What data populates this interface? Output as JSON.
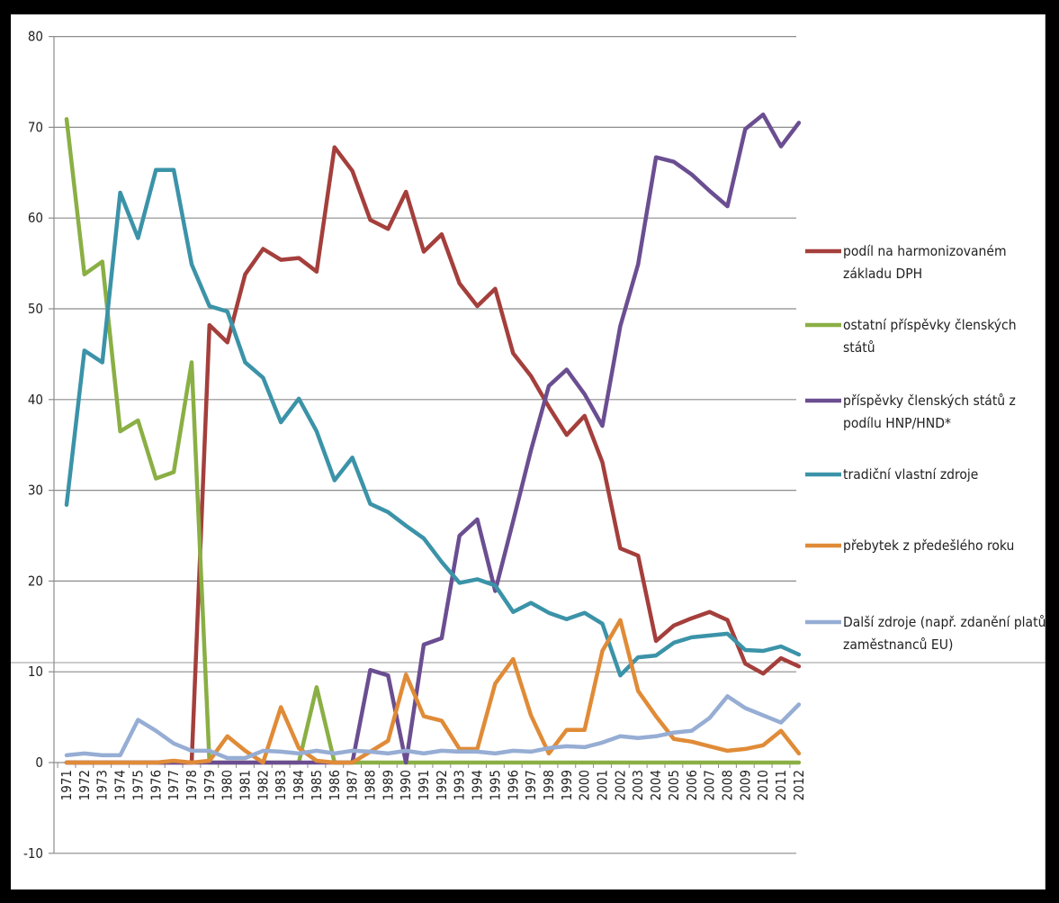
{
  "chart_data": {
    "type": "line",
    "title": "",
    "xlabel": "",
    "ylabel": "",
    "ylim": [
      -10,
      80
    ],
    "yticks": [
      "80",
      "70",
      "60",
      "50",
      "40",
      "30",
      "20",
      "10",
      "0",
      "-10"
    ],
    "ytick_values": [
      80,
      70,
      60,
      50,
      40,
      30,
      20,
      10,
      0,
      -10
    ],
    "grid": "horizontal",
    "legend_position": "right",
    "x": [
      "1971",
      "1972",
      "1973",
      "1974",
      "1975",
      "1976",
      "1977",
      "1978",
      "1979",
      "1980",
      "1981",
      "1982",
      "1983",
      "1984",
      "1985",
      "1986",
      "1987",
      "1988",
      "1989",
      "1990",
      "1991",
      "1992",
      "1993",
      "1994",
      "1995",
      "1996",
      "1997",
      "1998",
      "1999",
      "2000",
      "2001",
      "2002",
      "2003",
      "2004",
      "2005",
      "2006",
      "2007",
      "2008",
      "2009",
      "2010",
      "2011",
      "2012"
    ],
    "series": [
      {
        "name": "podíl na harmonizovaném základu DPH",
        "color": "#A43F3C",
        "legend_lines": [
          "podíl na harmonizovaném",
          "základu DPH"
        ],
        "values": [
          0,
          0,
          0,
          0,
          0,
          0,
          0,
          0,
          48.2,
          46.3,
          53.8,
          56.6,
          55.4,
          55.6,
          54.1,
          67.8,
          65.2,
          59.8,
          58.8,
          62.9,
          56.3,
          58.2,
          52.8,
          50.3,
          52.2,
          45.1,
          42.6,
          39.2,
          36.1,
          38.2,
          33.1,
          23.6,
          22.8,
          13.4,
          15.1,
          15.9,
          16.6,
          15.7,
          10.9,
          9.8,
          11.5,
          10.6
        ]
      },
      {
        "name": "ostatní příspěvky členských států",
        "color": "#8AAF44",
        "legend_lines": [
          "ostatní příspěvky členských",
          "států"
        ],
        "values": [
          70.9,
          53.8,
          55.2,
          36.5,
          37.7,
          31.3,
          32,
          44.1,
          0,
          0,
          0,
          0,
          0,
          0,
          8.3,
          0,
          0,
          0,
          0,
          0,
          0,
          0,
          0,
          0,
          0,
          0,
          0,
          0,
          0,
          0,
          0,
          0,
          0,
          0,
          0,
          0,
          0,
          0,
          0,
          0,
          0,
          0
        ]
      },
      {
        "name": "příspěvky členských států z podílu HNP/HND*",
        "color": "#6B4E91",
        "legend_lines": [
          "příspěvky členských států z",
          "podílu HNP/HND*"
        ],
        "values": [
          0,
          0,
          0,
          0,
          0,
          0,
          0,
          0,
          0,
          0,
          0,
          0,
          0,
          0,
          0,
          0,
          0,
          10.2,
          9.6,
          0,
          13,
          13.7,
          25,
          26.8,
          18.9,
          26.6,
          34.4,
          41.5,
          43.3,
          40.6,
          37.1,
          48.1,
          54.9,
          66.7,
          66.2,
          64.8,
          63,
          61.3,
          69.8,
          71.4,
          67.9,
          70.5
        ]
      },
      {
        "name": "tradiční vlastní zdroje",
        "color": "#3B93A8",
        "legend_lines": [
          "tradiční vlastní zdroje"
        ],
        "values": [
          28.4,
          45.4,
          44.1,
          62.8,
          57.8,
          65.3,
          65.3,
          54.9,
          50.3,
          49.7,
          44.1,
          42.4,
          37.5,
          40.1,
          36.5,
          31.1,
          33.6,
          28.5,
          27.6,
          26.1,
          24.7,
          22.1,
          19.8,
          20.2,
          19.5,
          16.6,
          17.6,
          16.5,
          15.8,
          16.5,
          15.3,
          9.6,
          11.6,
          11.8,
          13.2,
          13.8,
          14,
          14.2,
          12.4,
          12.3,
          12.8,
          11.9
        ]
      },
      {
        "name": "přebytek z předešlého roku",
        "color": "#E08B37",
        "legend_lines": [
          "přebytek z předešlého roku"
        ],
        "values": [
          0,
          0,
          0,
          0,
          0,
          0,
          0.2,
          0,
          0.2,
          2.9,
          1.3,
          0,
          6.1,
          1.6,
          0.2,
          0,
          0,
          1.2,
          2.4,
          9.7,
          5.1,
          4.6,
          1.5,
          1.5,
          8.7,
          11.4,
          5.2,
          1,
          3.6,
          3.6,
          12.3,
          15.7,
          7.9,
          5.1,
          2.6,
          2.3,
          1.8,
          1.3,
          1.5,
          1.9,
          3.5,
          1
        ]
      },
      {
        "name": "Další zdroje (např. zdanění platů zaměstnanců EU)",
        "color": "#96ADD4",
        "legend_lines": [
          "Další zdroje (např. zdanění platů",
          "zaměstnanců EU)"
        ],
        "values": [
          0.8,
          1,
          0.8,
          0.8,
          4.7,
          3.5,
          2.1,
          1.3,
          1.3,
          0.5,
          0.5,
          1.3,
          1.2,
          1,
          1.3,
          1,
          1.3,
          1.2,
          1,
          1.3,
          1,
          1.3,
          1.2,
          1.2,
          1,
          1.3,
          1.2,
          1.6,
          1.8,
          1.7,
          2.2,
          2.9,
          2.7,
          2.9,
          3.3,
          3.5,
          4.9,
          7.3,
          6,
          5.2,
          4.4,
          6.4
        ]
      }
    ]
  }
}
